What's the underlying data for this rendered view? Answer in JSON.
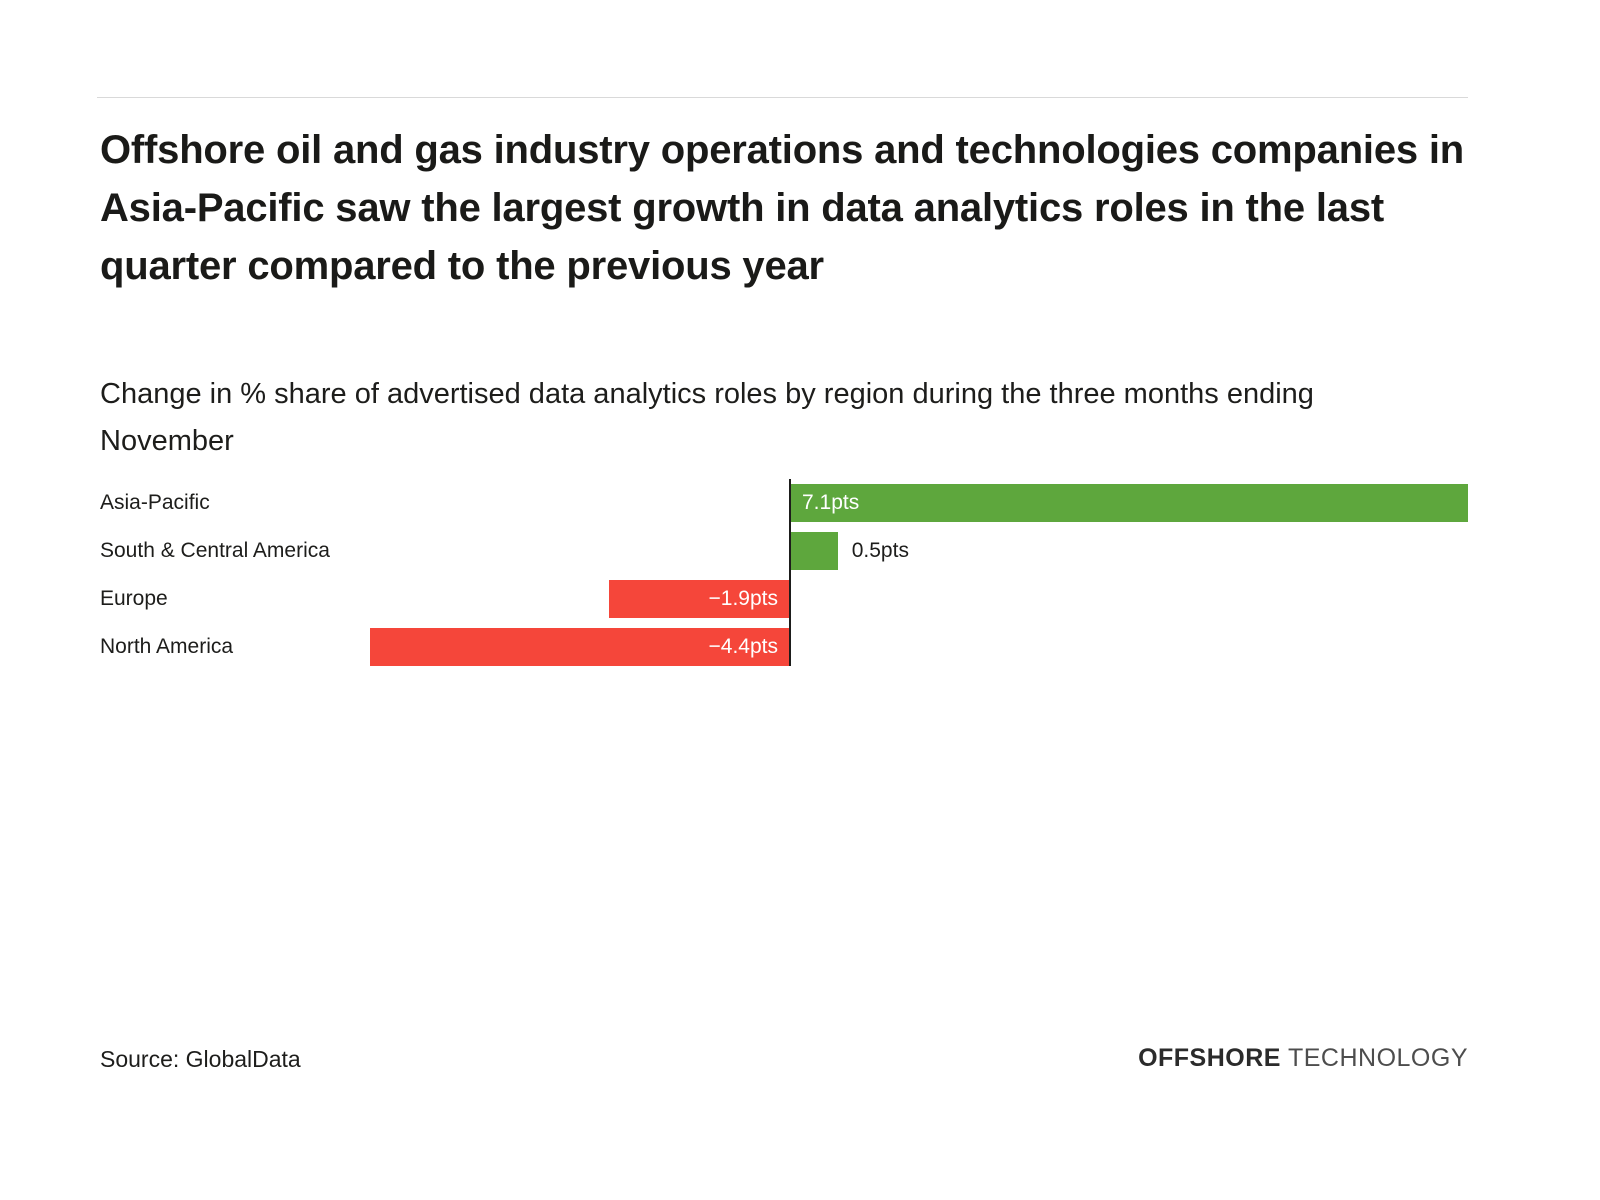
{
  "header": {
    "title": "Offshore oil and gas industry operations and technologies companies in Asia-Pacific saw the largest growth in data analytics roles in the last quarter compared to the previous year",
    "subtitle": "Change in % share of advertised data analytics roles by region during the three months ending November"
  },
  "chart_data": {
    "type": "bar",
    "orientation": "horizontal",
    "title": "Change in % share of advertised data analytics roles by region during the three months ending November",
    "xlabel": "",
    "ylabel": "",
    "categories": [
      "Asia-Pacific",
      "South & Central America",
      "Europe",
      "North America"
    ],
    "values": [
      7.1,
      0.5,
      -1.9,
      -4.4
    ],
    "value_labels": [
      "7.1pts",
      "0.5pts",
      "−1.9pts",
      "−4.4pts"
    ],
    "unit": "pts",
    "xlim": [
      -4.6,
      7.1
    ],
    "grid": false,
    "legend": "none",
    "colors": {
      "positive": "#5ea73d",
      "negative": "#f5463a"
    }
  },
  "footer": {
    "source": "Source: GlobalData",
    "logo_primary": "OFFSHORE",
    "logo_secondary": "TECHNOLOGY"
  }
}
